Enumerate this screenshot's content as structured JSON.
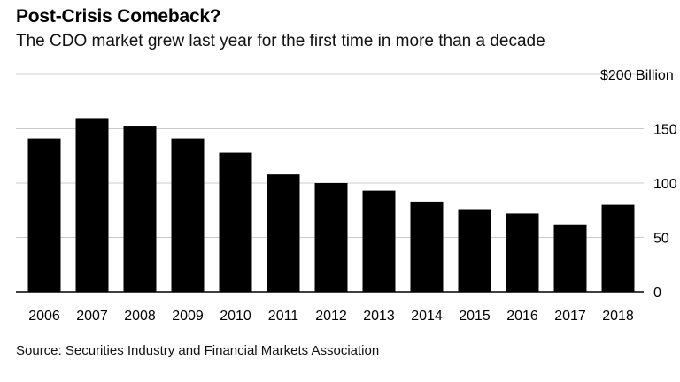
{
  "chart_data": {
    "type": "bar",
    "title": "Post-Crisis Comeback?",
    "subtitle": "The CDO market grew last year for the first time in more than a decade",
    "categories": [
      "2006",
      "2007",
      "2008",
      "2009",
      "2010",
      "2011",
      "2012",
      "2013",
      "2014",
      "2015",
      "2016",
      "2017",
      "2018"
    ],
    "values": [
      141,
      159,
      152,
      141,
      128,
      108,
      100,
      93,
      83,
      76,
      72,
      62,
      80
    ],
    "y_ticks": [
      0,
      50,
      100,
      150,
      200
    ],
    "y_tick_labels": [
      "0",
      "50",
      "100",
      "150",
      "$200 Billion"
    ],
    "ylim": [
      0,
      200
    ],
    "y_axis_position": "right",
    "grid": true,
    "bar_color": "#000000",
    "grid_color": "#cccccc",
    "source": "Source: Securities Industry and Financial Markets Association"
  }
}
